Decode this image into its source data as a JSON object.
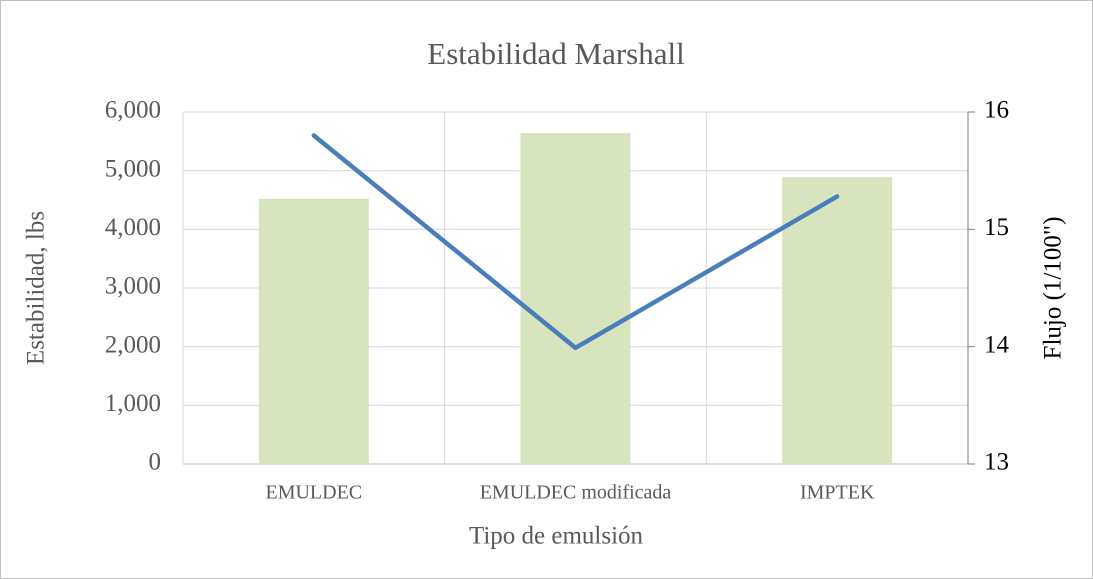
{
  "chart_data": {
    "type": "bar",
    "title": "Estabilidad Marshall",
    "xlabel": "Tipo de emulsión",
    "ylabel": "Estabilidad, lbs",
    "y2label": "Flujo (1/100\")",
    "categories": [
      "EMULDEC",
      "EMULDEC modificada",
      "IMPTEK"
    ],
    "series": [
      {
        "color": "#d7e4bd",
        "values": [
          4520,
          5640,
          4890
        ]
      },
      {
        "color": "#4a7ebb",
        "values": [
          15.8,
          13.99,
          15.28
        ],
        "axis": "y2",
        "type": "line"
      }
    ],
    "ylim": [
      0,
      6000
    ],
    "yticks": [
      0,
      {
        "value": 1000,
        "label": "1,000"
      },
      {
        "value": 2000,
        "label": "2,000"
      },
      {
        "value": 3000,
        "label": "3,000"
      },
      {
        "value": 4000,
        "label": "4,000"
      },
      {
        "value": 5000,
        "label": "5,000"
      },
      {
        "value": 6000,
        "label": "6,000"
      }
    ],
    "y2lim": [
      13,
      16
    ],
    "y2ticks": [
      13,
      14,
      15,
      16
    ],
    "grid": true
  }
}
